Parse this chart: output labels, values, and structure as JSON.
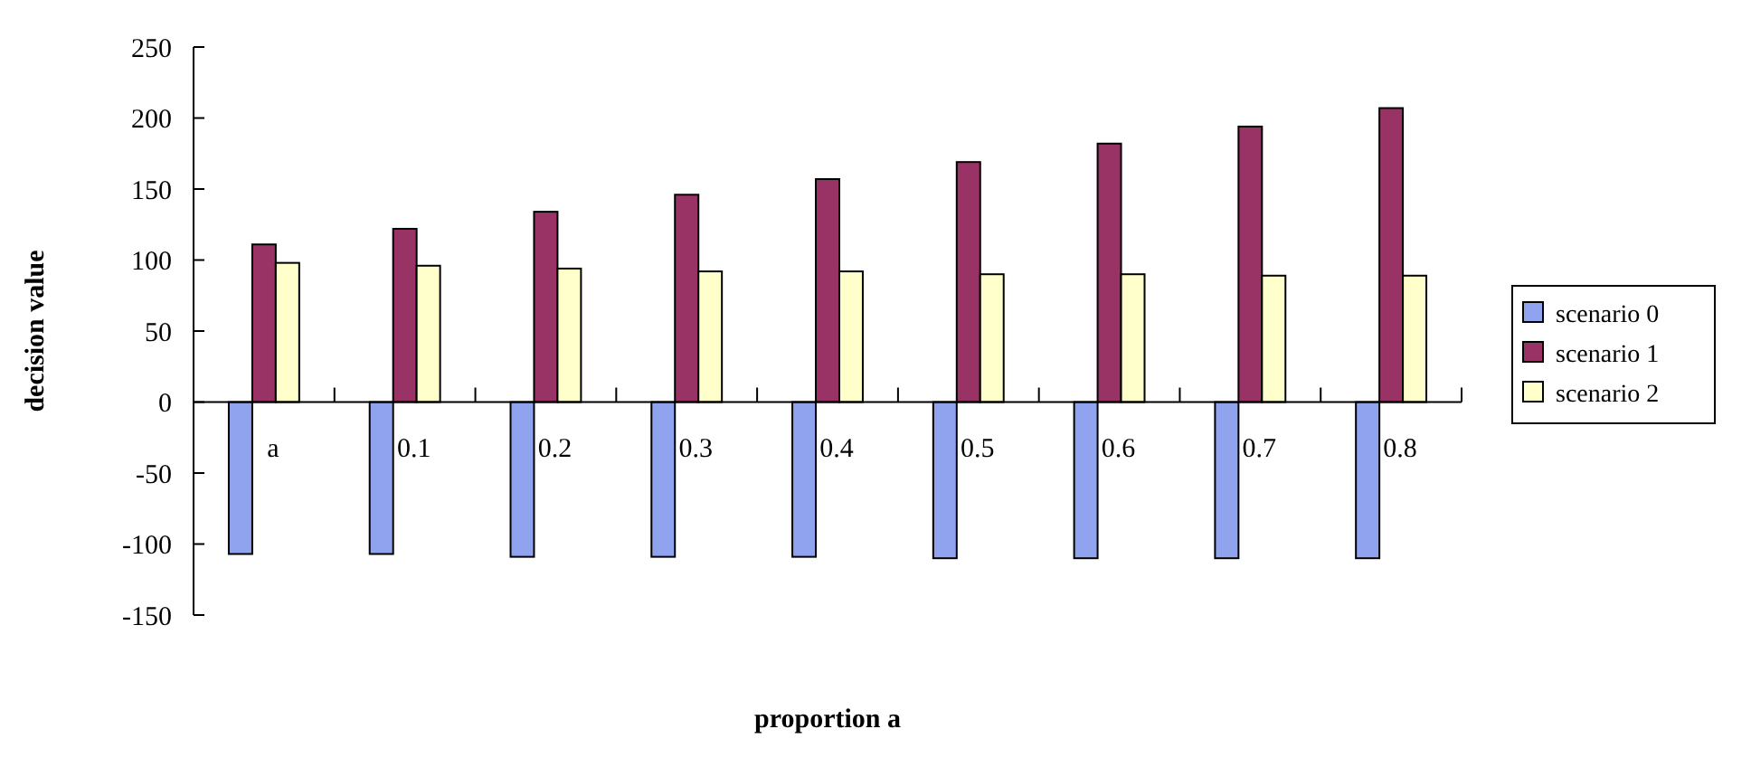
{
  "chart_data": {
    "type": "bar",
    "xlabel": "proportion a",
    "ylabel": "decision value",
    "categories": [
      "a",
      "0.1",
      "0.2",
      "0.3",
      "0.4",
      "0.5",
      "0.6",
      "0.7",
      "0.8"
    ],
    "series": [
      {
        "name": "scenario 0",
        "color": "#8fa3ee",
        "values": [
          -107,
          -107,
          -109,
          -109,
          -109,
          -110,
          -110,
          -110,
          -110
        ]
      },
      {
        "name": "scenario 1",
        "color": "#993366",
        "values": [
          111,
          122,
          134,
          146,
          157,
          169,
          182,
          194,
          207
        ]
      },
      {
        "name": "scenario 2",
        "color": "#ffffcc",
        "values": [
          98,
          96,
          94,
          92,
          92,
          90,
          90,
          89,
          89
        ]
      }
    ],
    "ylim": [
      -150,
      250
    ],
    "yticks": [
      -150,
      -100,
      -50,
      0,
      50,
      100,
      150,
      200,
      250
    ],
    "grid": false,
    "legend": "right"
  }
}
